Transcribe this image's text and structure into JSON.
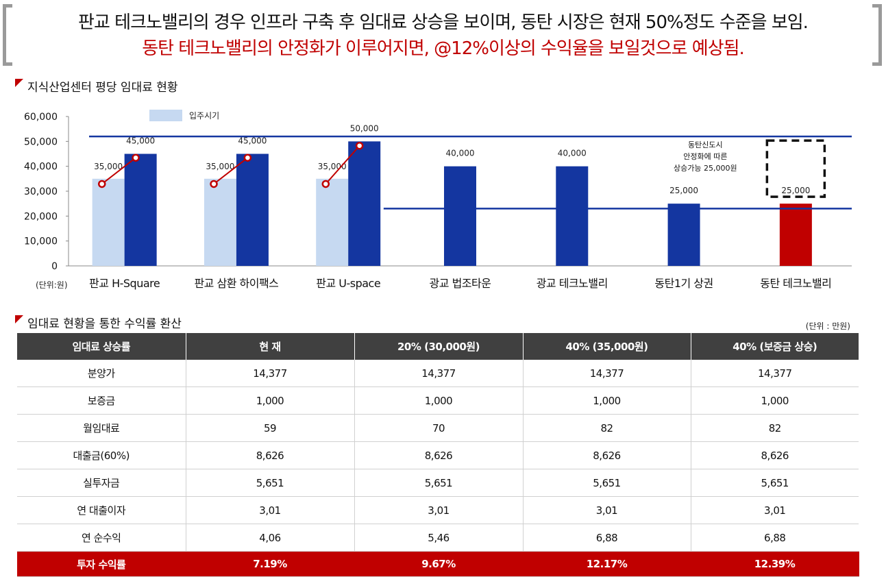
{
  "header": {
    "line1": "판교 테크노밸리의 경우 인프라 구축 후 임대료 상승을 보이며, 동탄 시장은 현재 50%정도 수준을 보임.",
    "line2": "동탄 테크노밸리의 안정화가 이루어지면, @12%이상의 수익율을 보일것으로 예상됨."
  },
  "section1": {
    "title": "지식산업센터 평당 임대료 현황"
  },
  "section2": {
    "title": "임대료 현황을 통한 수익률 환산",
    "unit": "(단위 : 만원)"
  },
  "chart_data": {
    "type": "bar",
    "title": "지식산업센터 평당 임대료 현황",
    "unit_label": "(단위:원)",
    "categories": [
      "판교 H-Square",
      "판교 삼환 하이팩스",
      "판교 U-space",
      "광교 법조타운",
      "광교 테크노밸리",
      "동탄1기 상권",
      "동탄 테크노밸리"
    ],
    "series": [
      {
        "name": "입주시기",
        "values": [
          35000,
          35000,
          35000,
          null,
          null,
          null,
          null
        ],
        "color": "#c6d9f1"
      },
      {
        "values": [
          45000,
          45000,
          50000,
          40000,
          40000,
          25000,
          25000
        ],
        "color": "#1436a0",
        "highlight_color": "#c00000"
      }
    ],
    "data_labels_light": [
      "35,000",
      "35,000",
      "35,000"
    ],
    "data_labels_dark": [
      "45,000",
      "45,000",
      "50,000",
      "40,000",
      "40,000",
      "25,000",
      "25,000"
    ],
    "yticks": [
      "0",
      "10,000",
      "20,000",
      "30,000",
      "40,000",
      "50,000",
      "60,000"
    ],
    "ylim": [
      0,
      60000
    ],
    "reference_lines": [
      52000,
      23000
    ],
    "annotation": [
      "동탄신도시",
      "안정화에 따른",
      "상승가능 25,000원"
    ],
    "legend_position": "top-left"
  },
  "table": {
    "headers": [
      "임대료 상승률",
      "현 재",
      "20% (30,000원)",
      "40% (35,000원)",
      "40% (보증금 상승)"
    ],
    "rows": [
      [
        "분양가",
        "14,377",
        "14,377",
        "14,377",
        "14,377"
      ],
      [
        "보증금",
        "1,000",
        "1,000",
        "1,000",
        "1,000"
      ],
      [
        "월임대료",
        "59",
        "70",
        "82",
        "82"
      ],
      [
        "대출금(60%)",
        "8,626",
        "8,626",
        "8,626",
        "8,626"
      ],
      [
        "실투자금",
        "5,651",
        "5,651",
        "5,651",
        "5,651"
      ],
      [
        "연 대출이자",
        "3,01",
        "3,01",
        "3,01",
        "3,01"
      ],
      [
        "연 순수익",
        "4,06",
        "5,46",
        "6,88",
        "6,88"
      ]
    ],
    "total_row": [
      "투자 수익률",
      "7.19%",
      "9.67%",
      "12.17%",
      "12.39%"
    ]
  }
}
